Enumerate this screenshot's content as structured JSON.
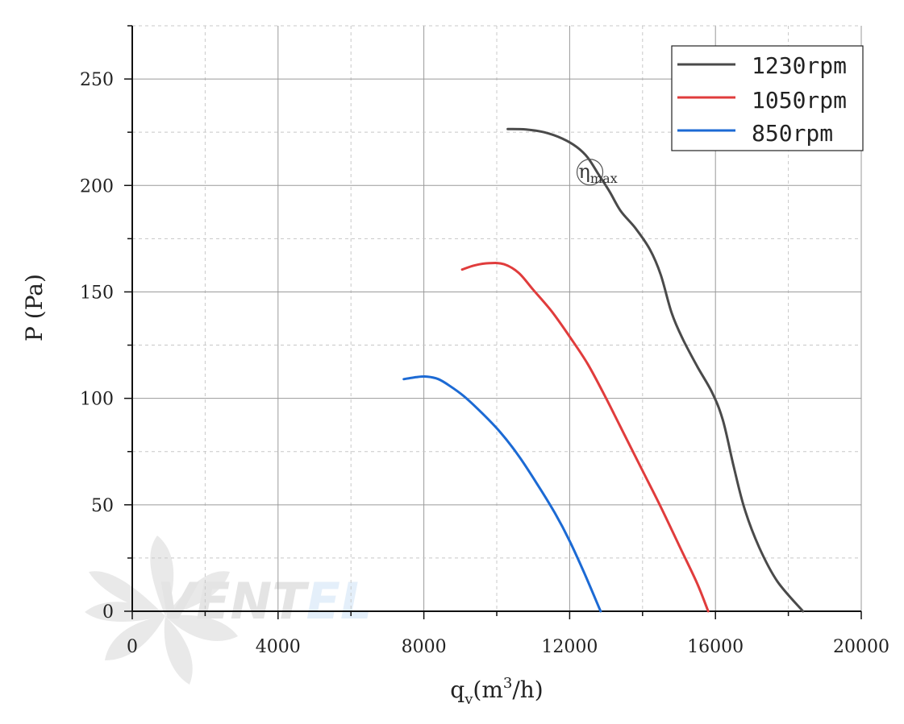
{
  "chart_data": {
    "type": "line",
    "title": "",
    "xlabel": {
      "main": "q",
      "sub": "v",
      "unit_open": "(m",
      "unit_sup": "3",
      "unit_close": "/h)"
    },
    "ylabel": "P (Pa)",
    "xlim": [
      0,
      20000
    ],
    "ylim": [
      0,
      275
    ],
    "xticks": [
      0,
      4000,
      8000,
      12000,
      16000,
      20000
    ],
    "yticks": [
      0,
      50,
      100,
      150,
      200,
      250
    ],
    "grid": true,
    "legend_position": "top-right",
    "series": [
      {
        "name": "1230rpm",
        "color": "#4a4a4a",
        "points": [
          [
            10300,
            226.5
          ],
          [
            10800,
            226.3
          ],
          [
            11300,
            225
          ],
          [
            11800,
            222
          ],
          [
            12200,
            218
          ],
          [
            12500,
            213
          ],
          [
            12800,
            205
          ],
          [
            13100,
            197
          ],
          [
            13400,
            188
          ],
          [
            13800,
            180
          ],
          [
            14200,
            170
          ],
          [
            14500,
            158
          ],
          [
            14800,
            140
          ],
          [
            15100,
            128
          ],
          [
            15500,
            115
          ],
          [
            15900,
            103
          ],
          [
            16200,
            90
          ],
          [
            16500,
            68
          ],
          [
            16800,
            48
          ],
          [
            17200,
            30
          ],
          [
            17700,
            14
          ],
          [
            18400,
            0
          ]
        ]
      },
      {
        "name": "1050rpm",
        "color": "#e03c3c",
        "points": [
          [
            9050,
            160.5
          ],
          [
            9400,
            162.5
          ],
          [
            9800,
            163.5
          ],
          [
            10200,
            163
          ],
          [
            10600,
            159
          ],
          [
            11000,
            151
          ],
          [
            11500,
            141
          ],
          [
            12000,
            129
          ],
          [
            12500,
            116
          ],
          [
            13000,
            100
          ],
          [
            13500,
            83
          ],
          [
            14000,
            66
          ],
          [
            14500,
            49
          ],
          [
            15000,
            31
          ],
          [
            15500,
            13
          ],
          [
            15800,
            0
          ]
        ]
      },
      {
        "name": "850rpm",
        "color": "#1c6ad4",
        "points": [
          [
            7450,
            109
          ],
          [
            7800,
            110
          ],
          [
            8100,
            110.2
          ],
          [
            8400,
            109
          ],
          [
            8700,
            106
          ],
          [
            9100,
            101
          ],
          [
            9600,
            93
          ],
          [
            10100,
            84
          ],
          [
            10600,
            73
          ],
          [
            11100,
            60
          ],
          [
            11600,
            46
          ],
          [
            12000,
            33
          ],
          [
            12400,
            18
          ],
          [
            12850,
            0
          ]
        ]
      }
    ],
    "annotations": [
      {
        "text_main": "η",
        "text_sub": "max",
        "x": 12600,
        "y": 207
      }
    ]
  },
  "watermark": {
    "text_dark": "VENT",
    "text_light": "EL"
  }
}
